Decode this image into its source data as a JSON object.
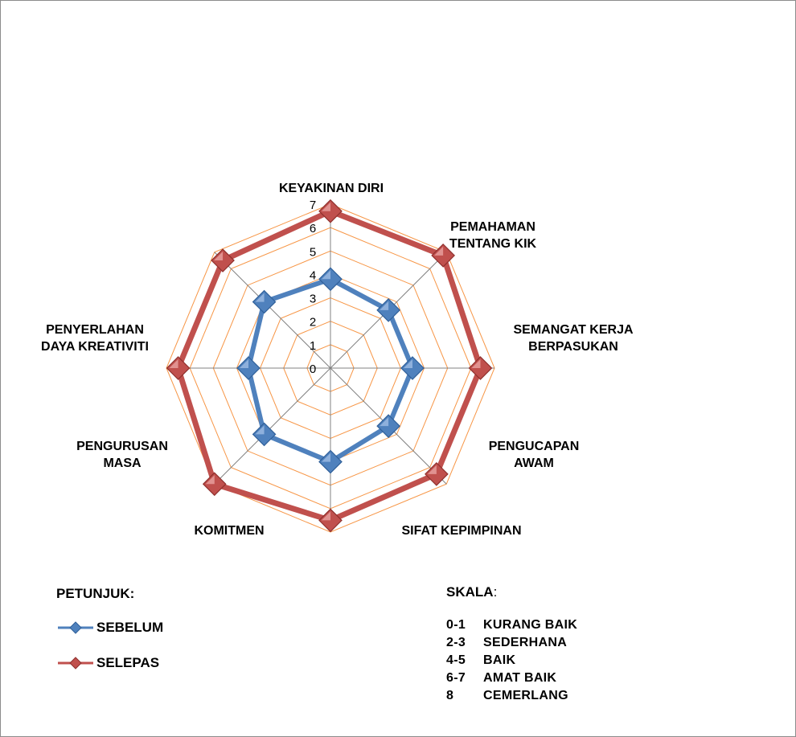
{
  "chart_data": {
    "type": "radar",
    "axes": [
      [
        "KEYAKINAN DIRI"
      ],
      [
        "PEMAHAMAN",
        "TENTANG KIK"
      ],
      [
        "SEMANGAT KERJA",
        "BERPASUKAN"
      ],
      [
        "PENGUCAPAN",
        "AWAM"
      ],
      [
        "SIFAT KEPIMPINAN"
      ],
      [
        "KOMITMEN"
      ],
      [
        "PENGURUSAN",
        "MASA"
      ],
      [
        "PENYERLAHAN",
        "DAYA KREATIVITI"
      ]
    ],
    "ticks": [
      "0",
      "1",
      "2",
      "3",
      "4",
      "5",
      "6",
      "7"
    ],
    "rmax": 7,
    "series": [
      {
        "name": "SEBELUM",
        "color": "#4f81bd",
        "values": [
          3.8,
          3.5,
          3.5,
          3.5,
          4.0,
          4.0,
          3.5,
          4.0
        ]
      },
      {
        "name": "SELEPAS",
        "color": "#c0504d",
        "values": [
          6.7,
          6.8,
          6.4,
          6.4,
          6.5,
          7.0,
          6.5,
          6.5
        ]
      }
    ],
    "gridColor": "#f79646",
    "spokeColor": "#808080"
  },
  "legend": {
    "title": "PETUNJUK:",
    "items": [
      {
        "label": "SEBELUM",
        "color": "#4f81bd"
      },
      {
        "label": "SELEPAS",
        "color": "#c0504d"
      }
    ]
  },
  "scale": {
    "title": "SKALA",
    "colon": ":",
    "rows": [
      {
        "range": "0-1",
        "text": "KURANG BAIK"
      },
      {
        "range": "2-3",
        "text": "SEDERHANA"
      },
      {
        "range": "4-5",
        "text": "BAIK"
      },
      {
        "range": "6-7",
        "text": "AMAT BAIK"
      },
      {
        "range": "8",
        "text": "CEMERLANG"
      }
    ]
  }
}
